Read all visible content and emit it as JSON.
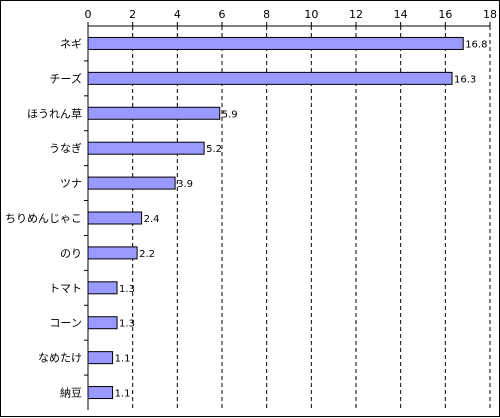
{
  "chart_data": {
    "type": "bar",
    "orientation": "horizontal",
    "categories": [
      "ネギ",
      "チーズ",
      "ほうれん草",
      "うなぎ",
      "ツナ",
      "ちりめんじゃこ",
      "のり",
      "トマト",
      "コーン",
      "なめたけ",
      "納豆"
    ],
    "values": [
      16.8,
      16.3,
      5.9,
      5.2,
      3.9,
      2.4,
      2.2,
      1.3,
      1.3,
      1.1,
      1.1
    ],
    "data_labels": [
      "16.8",
      "16.3",
      "5.9",
      "5.2",
      "3.9",
      "2.4",
      "2.2",
      "1.3",
      "1.3",
      "1.1",
      "1.1"
    ],
    "xticks": [
      "0",
      "2",
      "4",
      "6",
      "8",
      "10",
      "12",
      "14",
      "16",
      "18"
    ],
    "xlim": [
      0,
      18
    ],
    "xaxis_position": "top",
    "grid": "vertical-dashed",
    "legend": "none",
    "title": "",
    "xlabel": "",
    "ylabel": "",
    "colors": {
      "bar_fill": "#9999ff",
      "bar_stroke": "#000000",
      "grid": "#000000",
      "axis": "#000000",
      "background": "#ffffff"
    }
  }
}
